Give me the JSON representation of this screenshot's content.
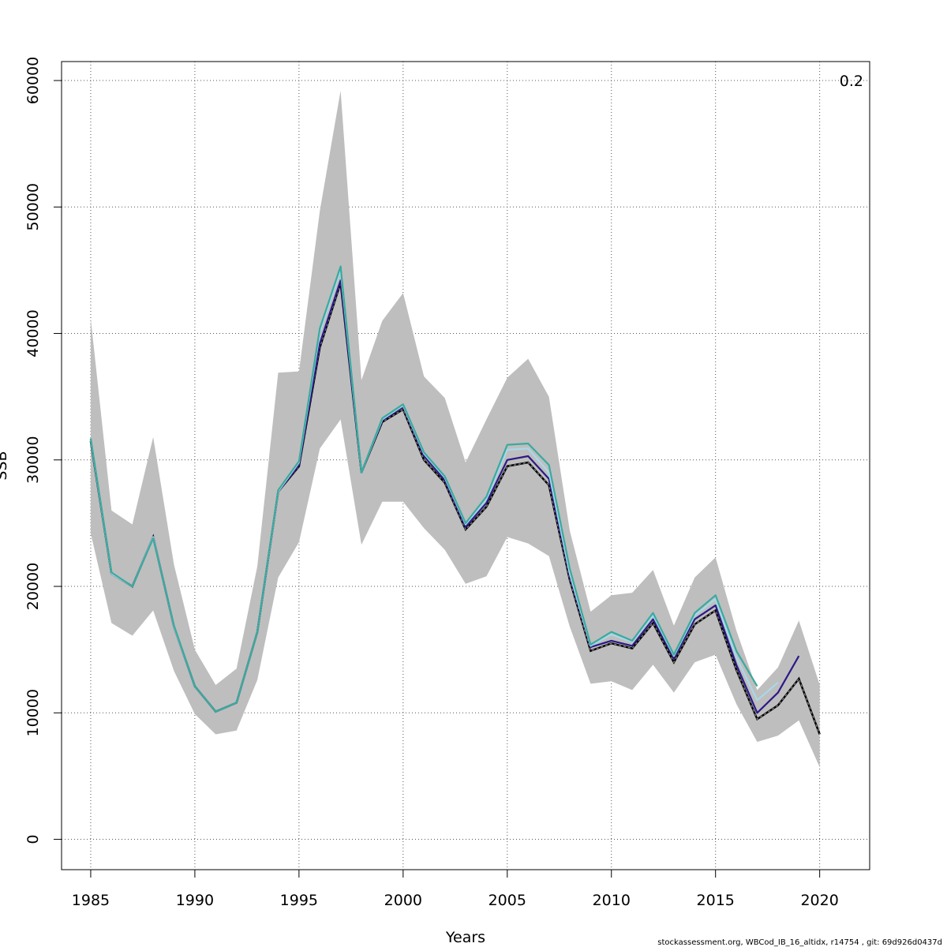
{
  "chart_data": {
    "type": "line",
    "title": "",
    "xlabel": "Years",
    "ylabel": "SSB",
    "corner_label": "0.2",
    "footer": "stockassessment.org, WBCod_IB_16_altidx, r14754 , git: 69d926d0437d",
    "xlim": [
      1983.6,
      2022.4
    ],
    "ylim": [
      -2400,
      61500
    ],
    "x_ticks": [
      1985,
      1990,
      1995,
      2000,
      2005,
      2010,
      2015,
      2020
    ],
    "y_ticks": [
      0,
      10000,
      20000,
      30000,
      40000,
      50000,
      60000
    ],
    "grid": true,
    "colors": {
      "band": "#bebebe",
      "base": "#000000",
      "series": [
        "#2b1a87",
        "#a8d8ea",
        "#3aaa9e"
      ]
    },
    "band": {
      "x": [
        1985,
        1986,
        1987,
        1988,
        1989,
        1990,
        1991,
        1992,
        1993,
        1994,
        1995,
        1996,
        1997,
        1998,
        1999,
        2000,
        2001,
        2002,
        2003,
        2004,
        2005,
        2006,
        2007,
        2008,
        2009,
        2010,
        2011,
        2012,
        2013,
        2014,
        2015,
        2016,
        2017,
        2018,
        2019,
        2020
      ],
      "lower": [
        24200,
        17100,
        16100,
        18100,
        13300,
        9900,
        8300,
        8600,
        12600,
        20700,
        23500,
        30900,
        33200,
        23300,
        26700,
        26700,
        24600,
        22900,
        20200,
        20800,
        23900,
        23400,
        22400,
        16800,
        12300,
        12500,
        11800,
        13800,
        11600,
        14000,
        14600,
        10700,
        7700,
        8200,
        9400,
        5700
      ],
      "upper": [
        41200,
        26000,
        24900,
        31800,
        21700,
        15000,
        12200,
        13500,
        21600,
        36900,
        37000,
        49700,
        59200,
        36300,
        41000,
        43200,
        36600,
        34900,
        29800,
        33200,
        36500,
        38000,
        35000,
        24400,
        18000,
        19300,
        19500,
        21300,
        16900,
        20700,
        22300,
        16500,
        11800,
        13600,
        17300,
        12200
      ]
    },
    "base_series": {
      "x": [
        1985,
        1986,
        1987,
        1988,
        1989,
        1990,
        1991,
        1992,
        1993,
        1994,
        1995,
        1996,
        1997,
        1998,
        1999,
        2000,
        2001,
        2002,
        2003,
        2004,
        2005,
        2006,
        2007,
        2008,
        2009,
        2010,
        2011,
        2012,
        2013,
        2014,
        2015,
        2016,
        2017,
        2018,
        2019,
        2020
      ],
      "values": [
        31500,
        21000,
        20000,
        23900,
        16800,
        12100,
        10100,
        10800,
        16400,
        27500,
        29500,
        38900,
        44000,
        29000,
        33000,
        34000,
        30000,
        28200,
        24500,
        26300,
        29500,
        29800,
        28000,
        20500,
        14900,
        15500,
        15100,
        17100,
        14000,
        17000,
        18100,
        13400,
        9500,
        10600,
        12700,
        8300
      ]
    },
    "series": [
      {
        "x": [
          1985,
          1986,
          1987,
          1988,
          1989,
          1990,
          1991,
          1992,
          1993,
          1994,
          1995,
          1996,
          1997,
          1998,
          1999,
          2000,
          2001,
          2002,
          2003,
          2004,
          2005,
          2006,
          2007,
          2008,
          2009,
          2010,
          2011,
          2012,
          2013,
          2014,
          2015,
          2016,
          2017,
          2018,
          2019
        ],
        "values": [
          31600,
          21000,
          20000,
          23900,
          16800,
          12100,
          10100,
          10800,
          16400,
          27500,
          29600,
          39200,
          44200,
          29000,
          33100,
          34200,
          30300,
          28400,
          24700,
          26600,
          30000,
          30300,
          28500,
          20800,
          15200,
          15700,
          15300,
          17400,
          14300,
          17400,
          18500,
          13800,
          10000,
          11600,
          14500
        ]
      },
      {
        "x": [
          1985,
          1986,
          1987,
          1988,
          1989,
          1990,
          1991,
          1992,
          1993,
          1994,
          1995,
          1996,
          1997,
          1998,
          1999,
          2000,
          2001,
          2002,
          2003,
          2004,
          2005,
          2006,
          2007,
          2008,
          2009,
          2010,
          2011,
          2012,
          2013,
          2014,
          2015,
          2016,
          2017,
          2018
        ],
        "values": [
          31600,
          21000,
          20000,
          23900,
          16800,
          12100,
          10100,
          10800,
          16400,
          27500,
          29800,
          40100,
          45000,
          29000,
          33200,
          34300,
          30500,
          28600,
          24900,
          26900,
          30800,
          30900,
          29000,
          21000,
          15300,
          16200,
          15600,
          17700,
          14500,
          17700,
          19000,
          14400,
          11000,
          12400
        ]
      },
      {
        "x": [
          1985,
          1986,
          1987,
          1988,
          1989,
          1990,
          1991,
          1992,
          1993,
          1994,
          1995,
          1996,
          1997,
          1998,
          1999,
          2000,
          2001,
          2002,
          2003,
          2004,
          2005,
          2006,
          2007,
          2008,
          2009,
          2010,
          2011,
          2012,
          2013,
          2014,
          2015,
          2016,
          2017
        ],
        "values": [
          31700,
          21100,
          20000,
          23800,
          16900,
          12100,
          10100,
          10800,
          16400,
          27600,
          29900,
          40400,
          45300,
          29000,
          33300,
          34400,
          30600,
          28700,
          25000,
          27100,
          31200,
          31300,
          29600,
          21400,
          15400,
          16400,
          15700,
          17900,
          14600,
          17900,
          19300,
          14900,
          12100
        ]
      }
    ]
  }
}
